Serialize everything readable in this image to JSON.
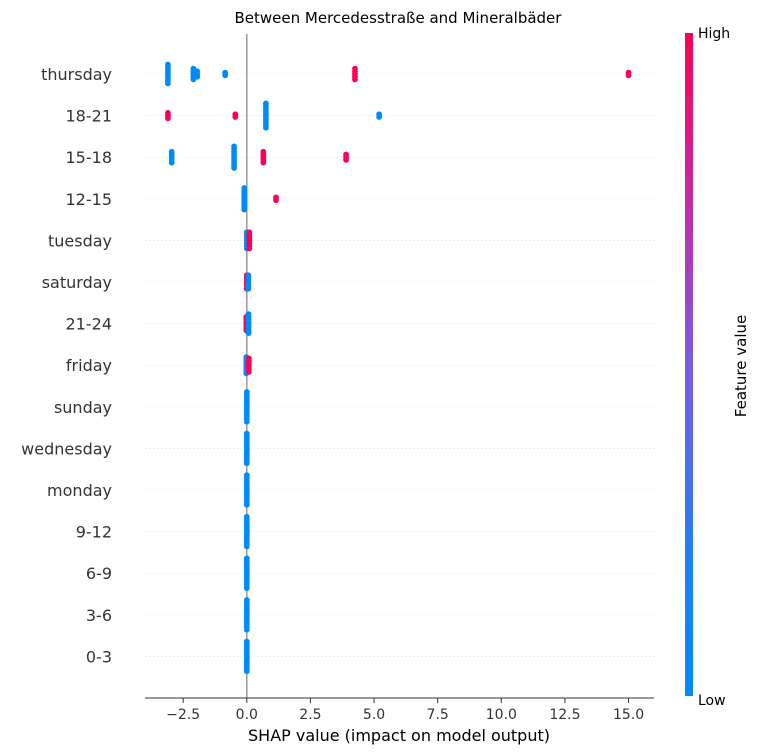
{
  "chart_data": {
    "type": "scatter",
    "title": "Between Mercedesstraße and Mineralbäder",
    "xlabel": "SHAP value (impact on model output)",
    "xlim": [
      -4.0,
      16.0
    ],
    "xticks": [
      -2.5,
      0.0,
      2.5,
      5.0,
      7.5,
      10.0,
      12.5,
      15.0
    ],
    "xtick_labels": [
      "−2.5",
      "0.0",
      "2.5",
      "5.0",
      "7.5",
      "10.0",
      "12.5",
      "15.0"
    ],
    "colorbar": {
      "title": "Feature value",
      "high_label": "High",
      "low_label": "Low",
      "low_color": "#008bfb",
      "high_color": "#ff0052"
    },
    "grid": false,
    "features": [
      {
        "name": "thursday",
        "points": [
          {
            "x": -3.1,
            "v": 0,
            "n": 8
          },
          {
            "x": -2.1,
            "v": 0,
            "n": 5
          },
          {
            "x": -1.95,
            "v": 0,
            "n": 3
          },
          {
            "x": -0.85,
            "v": 0,
            "n": 2
          },
          {
            "x": 4.25,
            "v": 1,
            "n": 5
          },
          {
            "x": 15.0,
            "v": 1,
            "n": 2
          }
        ]
      },
      {
        "name": "18-21",
        "points": [
          {
            "x": -3.1,
            "v": 1,
            "n": 3
          },
          {
            "x": -0.45,
            "v": 1,
            "n": 2
          },
          {
            "x": 0.75,
            "v": 0,
            "n": 10
          },
          {
            "x": 5.2,
            "v": 0,
            "n": 2
          }
        ]
      },
      {
        "name": "15-18",
        "points": [
          {
            "x": -2.95,
            "v": 0,
            "n": 5
          },
          {
            "x": -0.5,
            "v": 0,
            "n": 9
          },
          {
            "x": 0.65,
            "v": 1,
            "n": 5
          },
          {
            "x": 3.9,
            "v": 1,
            "n": 3
          }
        ]
      },
      {
        "name": "12-15",
        "points": [
          {
            "x": -0.1,
            "v": 0,
            "n": 9
          },
          {
            "x": 1.15,
            "v": 1,
            "n": 2
          }
        ]
      },
      {
        "name": "tuesday",
        "points": [
          {
            "x": 0.0,
            "v": 0,
            "n": 7
          },
          {
            "x": 0.1,
            "v": 1,
            "n": 7
          }
        ]
      },
      {
        "name": "saturday",
        "points": [
          {
            "x": 0.0,
            "v": 1,
            "n": 6
          },
          {
            "x": 0.06,
            "v": 0,
            "n": 6
          }
        ]
      },
      {
        "name": "21-24",
        "points": [
          {
            "x": -0.02,
            "v": 1,
            "n": 6
          },
          {
            "x": 0.07,
            "v": 0,
            "n": 8
          }
        ]
      },
      {
        "name": "friday",
        "points": [
          {
            "x": -0.02,
            "v": 0,
            "n": 7
          },
          {
            "x": 0.08,
            "v": 1,
            "n": 6
          }
        ]
      },
      {
        "name": "sunday",
        "points": [
          {
            "x": 0.0,
            "v": 0,
            "n": 12
          }
        ]
      },
      {
        "name": "wednesday",
        "points": [
          {
            "x": 0.0,
            "v": 0,
            "n": 12
          }
        ]
      },
      {
        "name": "monday",
        "points": [
          {
            "x": 0.0,
            "v": 0,
            "n": 12
          }
        ]
      },
      {
        "name": "9-12",
        "points": [
          {
            "x": 0.0,
            "v": 0,
            "n": 12
          }
        ]
      },
      {
        "name": "6-9",
        "points": [
          {
            "x": 0.0,
            "v": 0,
            "n": 12
          }
        ]
      },
      {
        "name": "3-6",
        "points": [
          {
            "x": 0.0,
            "v": 0,
            "n": 12
          }
        ]
      },
      {
        "name": "0-3",
        "points": [
          {
            "x": 0.0,
            "v": 0,
            "n": 12
          }
        ]
      }
    ]
  }
}
